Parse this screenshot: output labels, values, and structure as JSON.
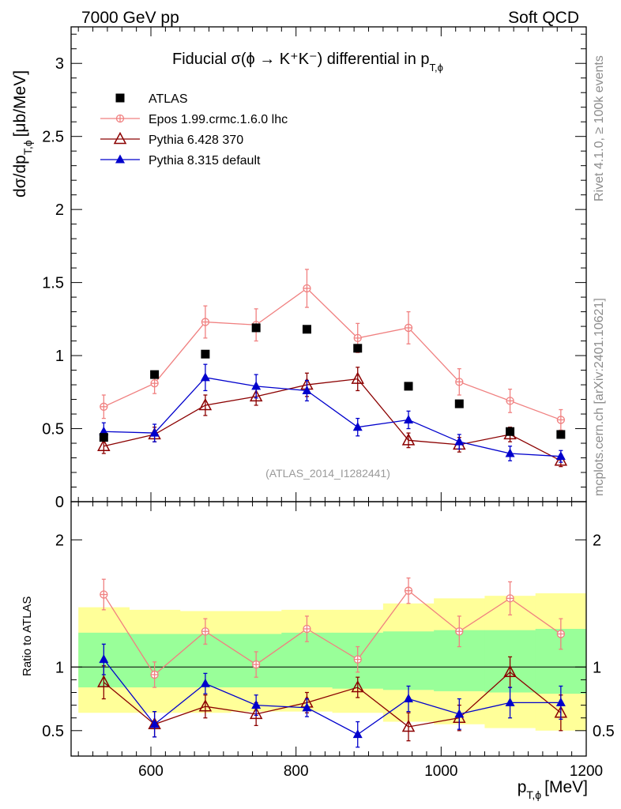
{
  "header": {
    "left": "7000 GeV pp",
    "right": "Soft QCD"
  },
  "side_labels": {
    "rivet": "Rivet 4.1.0, ≥ 100k events",
    "mcplots": "mcplots.cern.ch [arXiv:2401.10621]"
  },
  "chart_data": {
    "type": "scatter",
    "title": "Fiducial σ(ϕ → K⁺K⁻) differential in p_{T,ϕ}",
    "title_main": "Fiducial σ(ϕ →  K⁺K⁻) differential in p",
    "title_sub": "T,ϕ",
    "analysis_id": "(ATLAS_2014_I1282441)",
    "xlabel": "p",
    "xlabel_sub": "T,ϕ",
    "xlabel_unit": "[MeV]",
    "ylabel": "dσ/dp",
    "ylabel_sub": "T,ϕ",
    "ylabel_unit": "[μb/MeV]",
    "ratio_ylabel": "Ratio to ATLAS",
    "xlim": [
      490,
      1200
    ],
    "ylim": [
      0,
      3.25
    ],
    "ratio_ylim": [
      0.3,
      2.3
    ],
    "x_ticks": [
      600,
      800,
      1000,
      1200
    ],
    "y_ticks": [
      0,
      0.5,
      1,
      1.5,
      2,
      2.5,
      3
    ],
    "ratio_ticks": [
      0.5,
      1,
      2
    ],
    "x": [
      535,
      605,
      675,
      745,
      815,
      885,
      955,
      1025,
      1095,
      1165
    ],
    "bin_edges": [
      500,
      570,
      640,
      710,
      780,
      850,
      920,
      990,
      1060,
      1130,
      1200
    ],
    "series": [
      {
        "name": "ATLAS",
        "color": "#000000",
        "marker": "square",
        "values": [
          0.44,
          0.87,
          1.01,
          1.19,
          1.18,
          1.05,
          0.79,
          0.67,
          0.48,
          0.46
        ]
      },
      {
        "name": "Epos 1.99.crmc.1.6.0 lhc",
        "color": "#f08080",
        "marker": "cross-circle",
        "values": [
          0.65,
          0.81,
          1.23,
          1.21,
          1.46,
          1.12,
          1.19,
          0.82,
          0.69,
          0.56
        ],
        "errors": [
          0.08,
          0.07,
          0.11,
          0.11,
          0.13,
          0.1,
          0.11,
          0.09,
          0.08,
          0.07
        ],
        "ratio": [
          1.57,
          0.94,
          1.28,
          1.02,
          1.3,
          1.06,
          1.6,
          1.28,
          1.54,
          1.26
        ],
        "ratio_errors": [
          0.12,
          0.1,
          0.1,
          0.1,
          0.1,
          0.1,
          0.1,
          0.12,
          0.13,
          0.12
        ]
      },
      {
        "name": "Pythia 6.428 370",
        "color": "#8b0000",
        "marker": "open-triangle",
        "values": [
          0.38,
          0.46,
          0.66,
          0.72,
          0.8,
          0.84,
          0.42,
          0.39,
          0.46,
          0.28
        ],
        "errors": [
          0.05,
          0.05,
          0.07,
          0.06,
          0.08,
          0.08,
          0.05,
          0.05,
          0.05,
          0.04
        ],
        "ratio": [
          0.88,
          0.55,
          0.69,
          0.63,
          0.72,
          0.84,
          0.53,
          0.6,
          0.96,
          0.64
        ],
        "ratio_errors": [
          0.13,
          0.1,
          0.09,
          0.09,
          0.08,
          0.08,
          0.11,
          0.1,
          0.12,
          0.14
        ]
      },
      {
        "name": "Pythia 8.315 default",
        "color": "#0000cc",
        "marker": "filled-triangle",
        "values": [
          0.48,
          0.47,
          0.85,
          0.79,
          0.76,
          0.51,
          0.56,
          0.41,
          0.33,
          0.31
        ],
        "errors": [
          0.06,
          0.06,
          0.09,
          0.08,
          0.07,
          0.06,
          0.06,
          0.05,
          0.05,
          0.04
        ],
        "ratio": [
          1.06,
          0.55,
          0.87,
          0.7,
          0.68,
          0.47,
          0.75,
          0.63,
          0.72,
          0.72
        ],
        "ratio_errors": [
          0.12,
          0.1,
          0.08,
          0.08,
          0.07,
          0.1,
          0.1,
          0.12,
          0.12,
          0.13
        ]
      }
    ],
    "ratio_bands": {
      "inner_color": "#99ff99",
      "outer_color": "#ffff99",
      "inner_hi": [
        1.27,
        1.26,
        1.26,
        1.26,
        1.27,
        1.27,
        1.28,
        1.29,
        1.29,
        1.3
      ],
      "inner_lo": [
        0.84,
        0.84,
        0.84,
        0.84,
        0.84,
        0.83,
        0.82,
        0.81,
        0.8,
        0.79
      ],
      "outer_hi": [
        1.47,
        1.45,
        1.44,
        1.44,
        1.45,
        1.45,
        1.5,
        1.54,
        1.56,
        1.58
      ],
      "outer_lo": [
        0.64,
        0.64,
        0.64,
        0.65,
        0.65,
        0.64,
        0.57,
        0.55,
        0.52,
        0.5
      ]
    }
  }
}
